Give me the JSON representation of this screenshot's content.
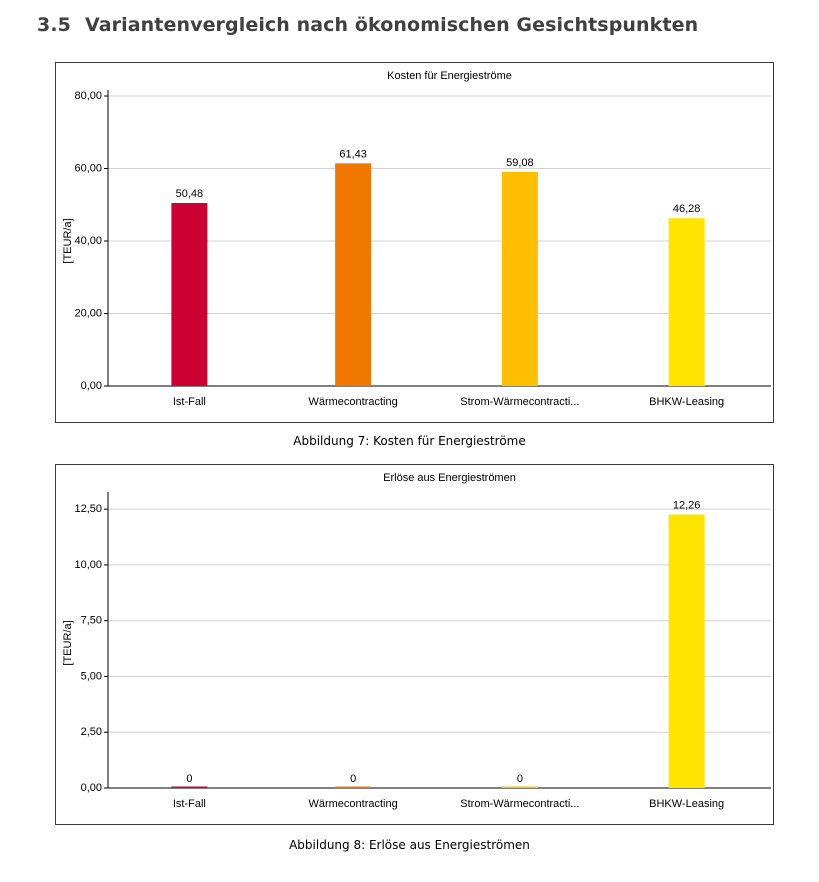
{
  "heading": {
    "number": "3.5",
    "text": "Variantenvergleich nach ökonomischen Gesichtspunkten"
  },
  "colors": {
    "ist_fall": "#cc0033",
    "waermecontracting": "#f07800",
    "strom_waermecontracting": "#ffbe00",
    "bhkw_leasing": "#ffe400",
    "gridline": "#d4d4d4",
    "axis": "#000000"
  },
  "chart_data": [
    {
      "type": "bar",
      "title": "Kosten für Energieströme",
      "ylabel": "[TEUR/a]",
      "xlabel": "",
      "categories": [
        "Ist-Fall",
        "Wärmecontracting",
        "Strom-Wärmecontracti...",
        "BHKW-Leasing"
      ],
      "values": [
        50.48,
        61.43,
        59.08,
        46.28
      ],
      "data_labels": [
        "50,48",
        "61,43",
        "59,08",
        "46,28"
      ],
      "ylim": [
        0,
        80
      ],
      "yticks": [
        0,
        20,
        40,
        60,
        80
      ],
      "ytick_labels": [
        "0,00",
        "20,00",
        "40,00",
        "60,00",
        "80,00"
      ],
      "grid": true,
      "caption": "Abbildung 7: Kosten für Energieströme"
    },
    {
      "type": "bar",
      "title": "Erlöse aus Energieströmen",
      "ylabel": "[TEUR/a]",
      "xlabel": "",
      "categories": [
        "Ist-Fall",
        "Wärmecontracting",
        "Strom-Wärmecontracti...",
        "BHKW-Leasing"
      ],
      "values": [
        0,
        0,
        0,
        12.26
      ],
      "data_labels": [
        "0",
        "0",
        "0",
        "12,26"
      ],
      "ylim": [
        0,
        13
      ],
      "yticks": [
        0,
        2.5,
        5,
        7.5,
        10,
        12.5
      ],
      "ytick_labels": [
        "0,00",
        "2,50",
        "5,00",
        "7,50",
        "10,00",
        "12,50"
      ],
      "grid": true,
      "caption": "Abbildung 8: Erlöse aus Energieströmen"
    }
  ]
}
